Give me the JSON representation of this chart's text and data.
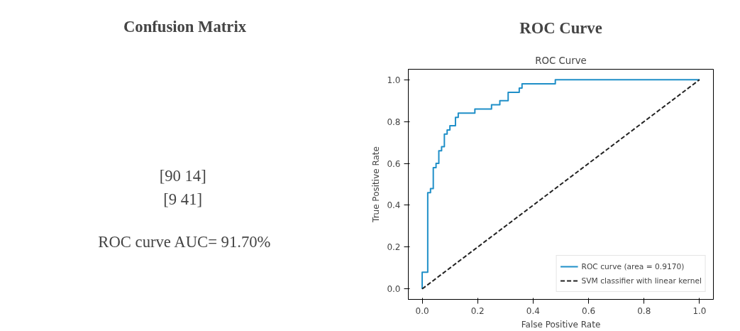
{
  "chart_data": [
    {
      "type": "other",
      "title": "Confusion Matrix",
      "annotations": [
        "[90  14]",
        "[9  41]",
        "ROC curve AUC= 91.70%"
      ]
    },
    {
      "type": "line",
      "title": "ROC Curve",
      "subtitle": "ROC Curve",
      "xlabel": "False Positive Rate",
      "ylabel": "True Positive Rate",
      "xlim": [
        -0.05,
        1.05
      ],
      "ylim": [
        -0.05,
        1.05
      ],
      "xticks": [
        {
          "value": 0,
          "label": "0.0"
        },
        {
          "value": 0.2,
          "label": "0.2"
        },
        {
          "value": 0.4,
          "label": "0.4"
        },
        {
          "value": 0.6,
          "label": "0.6"
        },
        {
          "value": 0.8,
          "label": "0.8"
        },
        {
          "value": 1,
          "label": "1.0"
        }
      ],
      "yticks": [
        {
          "value": 0,
          "label": "0.0"
        },
        {
          "value": 0.2,
          "label": "0.2"
        },
        {
          "value": 0.4,
          "label": "0.4"
        },
        {
          "value": 0.6,
          "label": "0.6"
        },
        {
          "value": 0.8,
          "label": "0.8"
        },
        {
          "value": 1,
          "label": "1.0"
        }
      ],
      "legend": "bottom right",
      "grid": false,
      "series": [
        {
          "name": "ROC curve (area = 0.9170)",
          "color": "#1f8fc8",
          "line_style": "solid",
          "x": [
            0,
            0,
            0.02,
            0.02,
            0.03,
            0.03,
            0.04,
            0.04,
            0.05,
            0.05,
            0.06,
            0.06,
            0.07,
            0.07,
            0.08,
            0.08,
            0.09,
            0.09,
            0.1,
            0.1,
            0.12,
            0.12,
            0.13,
            0.13,
            0.19,
            0.19,
            0.25,
            0.25,
            0.28,
            0.28,
            0.31,
            0.31,
            0.35,
            0.35,
            0.36,
            0.36,
            0.48,
            0.48,
            1
          ],
          "values": [
            0,
            0.08,
            0.08,
            0.46,
            0.46,
            0.48,
            0.48,
            0.58,
            0.58,
            0.6,
            0.6,
            0.66,
            0.66,
            0.68,
            0.68,
            0.74,
            0.74,
            0.76,
            0.76,
            0.78,
            0.78,
            0.82,
            0.82,
            0.84,
            0.84,
            0.86,
            0.86,
            0.88,
            0.88,
            0.9,
            0.9,
            0.94,
            0.94,
            0.96,
            0.96,
            0.98,
            0.98,
            1.0,
            1.0
          ]
        },
        {
          "name": "SVM classifier with linear kernel",
          "color": "#222222",
          "line_style": "dashed",
          "x": [
            0,
            1
          ],
          "values": [
            0,
            1
          ]
        }
      ]
    }
  ]
}
